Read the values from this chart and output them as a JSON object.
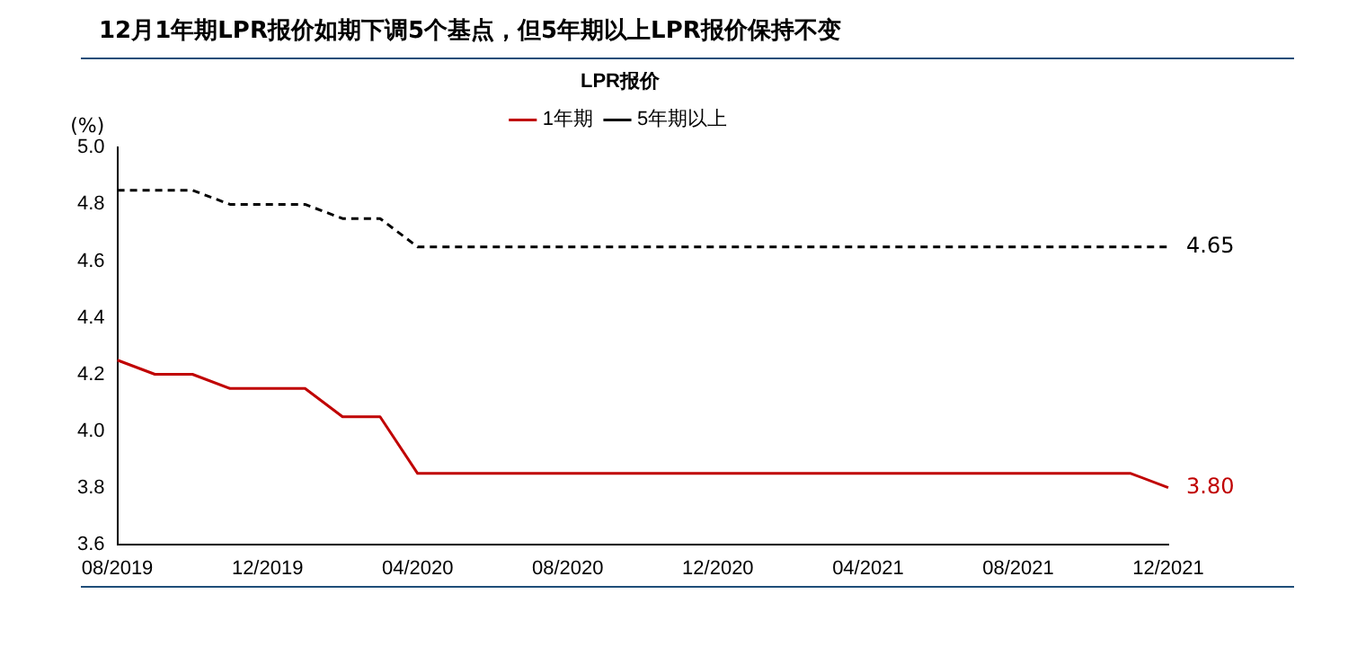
{
  "chart_data": {
    "type": "line",
    "title": "12月1年期LPR报价如期下调5个基点，但5年期以上LPR报价保持不变",
    "ylabel": "(%)",
    "legend_title": "LPR报价",
    "legend": "top",
    "marker": "none",
    "grid": false,
    "categories": [
      "08/2019",
      null,
      null,
      null,
      "12/2019",
      null,
      null,
      null,
      "04/2020",
      null,
      null,
      null,
      "08/2020",
      null,
      null,
      null,
      "12/2020",
      null,
      null,
      null,
      "04/2021",
      null,
      null,
      null,
      "08/2021",
      null,
      null,
      null,
      "12/2021"
    ],
    "ylim": [
      3.6,
      5.0
    ],
    "yticks": [
      3.6,
      3.8,
      {
        "value": 4.0,
        "label": "4.0"
      },
      4.2,
      4.4,
      4.6,
      4.8,
      {
        "value": 5.0,
        "label": "5.0"
      }
    ],
    "series": [
      {
        "name": "1年期",
        "color": "#c00000",
        "line_style": "solid",
        "values": [
          4.25,
          4.2,
          4.2,
          4.15,
          4.15,
          4.15,
          4.05,
          4.05,
          3.85,
          3.85,
          3.85,
          3.85,
          3.85,
          3.85,
          3.85,
          3.85,
          3.85,
          3.85,
          3.85,
          3.85,
          3.85,
          3.85,
          3.85,
          3.85,
          3.85,
          3.85,
          3.85,
          3.85,
          3.8
        ],
        "value_labels": [
          null,
          null,
          null,
          null,
          null,
          null,
          null,
          null,
          null,
          null,
          null,
          null,
          null,
          null,
          null,
          null,
          null,
          null,
          null,
          null,
          null,
          null,
          null,
          null,
          null,
          null,
          null,
          null,
          "3.80"
        ]
      },
      {
        "name": "5年期以上",
        "color": "#000000",
        "line_style": "dashed",
        "values": [
          4.85,
          4.85,
          4.85,
          4.8,
          4.8,
          4.8,
          4.75,
          4.75,
          4.65,
          4.65,
          4.65,
          4.65,
          4.65,
          4.65,
          4.65,
          4.65,
          4.65,
          4.65,
          4.65,
          4.65,
          4.65,
          4.65,
          4.65,
          4.65,
          4.65,
          4.65,
          4.65,
          4.65,
          4.65
        ],
        "value_labels": [
          null,
          null,
          null,
          null,
          null,
          null,
          null,
          null,
          null,
          null,
          null,
          null,
          null,
          null,
          null,
          null,
          null,
          null,
          null,
          null,
          null,
          null,
          null,
          null,
          null,
          null,
          null,
          null,
          "4.65"
        ]
      }
    ]
  }
}
